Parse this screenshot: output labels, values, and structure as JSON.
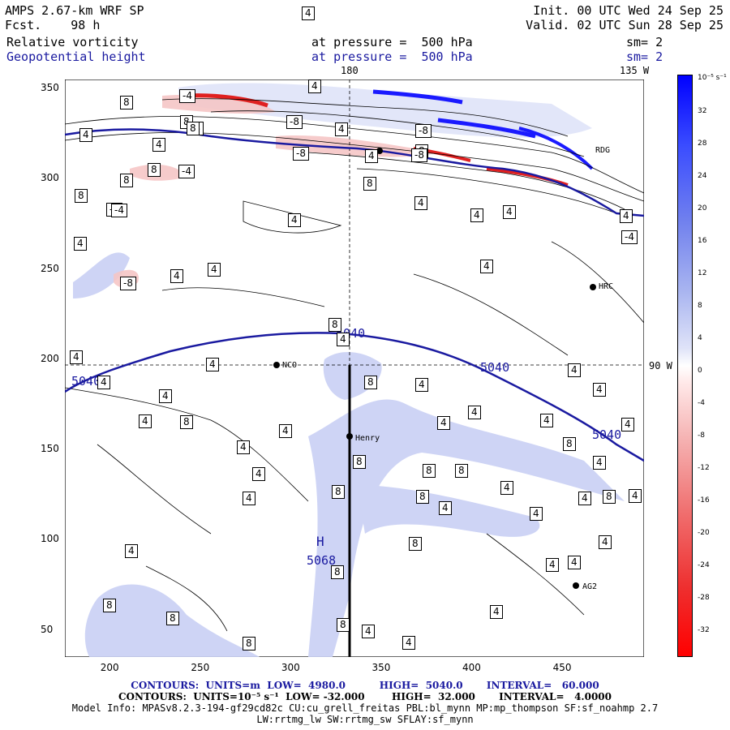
{
  "header": {
    "model": "AMPS 2.67-km WRF SP",
    "fcst": "Fcst.    98 h",
    "init": "Init. 00 UTC Wed 24 Sep 25",
    "valid": "Valid. 02 UTC Sun 28 Sep 25",
    "field1_name": "Relative vorticity",
    "field1_level": "at pressure =  500 hPa",
    "field1_sm": "sm= 2",
    "field2_name": "Geopotential height",
    "field2_level": "at pressure =  500 hPa",
    "field2_sm": "sm= 2"
  },
  "map_labels": {
    "top_180": "180",
    "top_135w": "135 W",
    "right_90w": "90 W",
    "stations": [
      {
        "name": "RDG"
      },
      {
        "name": "HRC"
      },
      {
        "name": "NCO"
      },
      {
        "name": "Henry"
      },
      {
        "name": "AG2"
      }
    ],
    "high_label": "H",
    "high_value": "5068",
    "height_contour_labels": [
      "5040",
      "5040",
      "5040",
      "5040"
    ]
  },
  "chart_data": {
    "type": "map",
    "x_ticks": [
      "200",
      "250",
      "300",
      "350",
      "400",
      "450"
    ],
    "y_ticks": [
      "350",
      "300",
      "250",
      "200",
      "150",
      "100",
      "50"
    ],
    "xlim": [
      175,
      495
    ],
    "ylim": [
      35,
      355
    ],
    "vorticity_labels": [
      "4",
      "8",
      "-4",
      "-8"
    ],
    "colorbar": {
      "unit": "10⁻⁵ s⁻¹",
      "ticks": [
        "32",
        "28",
        "24",
        "20",
        "16",
        "12",
        "8",
        "4",
        "0",
        "-4",
        "-8",
        "-12",
        "-16",
        "-20",
        "-24",
        "-28",
        "-32"
      ]
    },
    "colors": {
      "positive": "#0000ff",
      "negative": "#ff0000",
      "height_contour": "#1a1aa0"
    }
  },
  "footer": {
    "line1": "CONTOURS:  UNITS=m  LOW=  4980.0          HIGH=  5040.0       INTERVAL=   60.000",
    "line2": "CONTOURS:  UNITS=10⁻⁵ s⁻¹  LOW= -32.000        HIGH=  32.000       INTERVAL=   4.0000",
    "line3": "Model Info: MPASv8.2.3-194-gf29cd82c CU:cu_grell_freitas PBL:bl_mynn MP:mp_thompson SF:sf_noahmp 2.7",
    "line4": "LW:rrtmg_lw SW:rrtmg_sw SFLAY:sf_mynn"
  }
}
